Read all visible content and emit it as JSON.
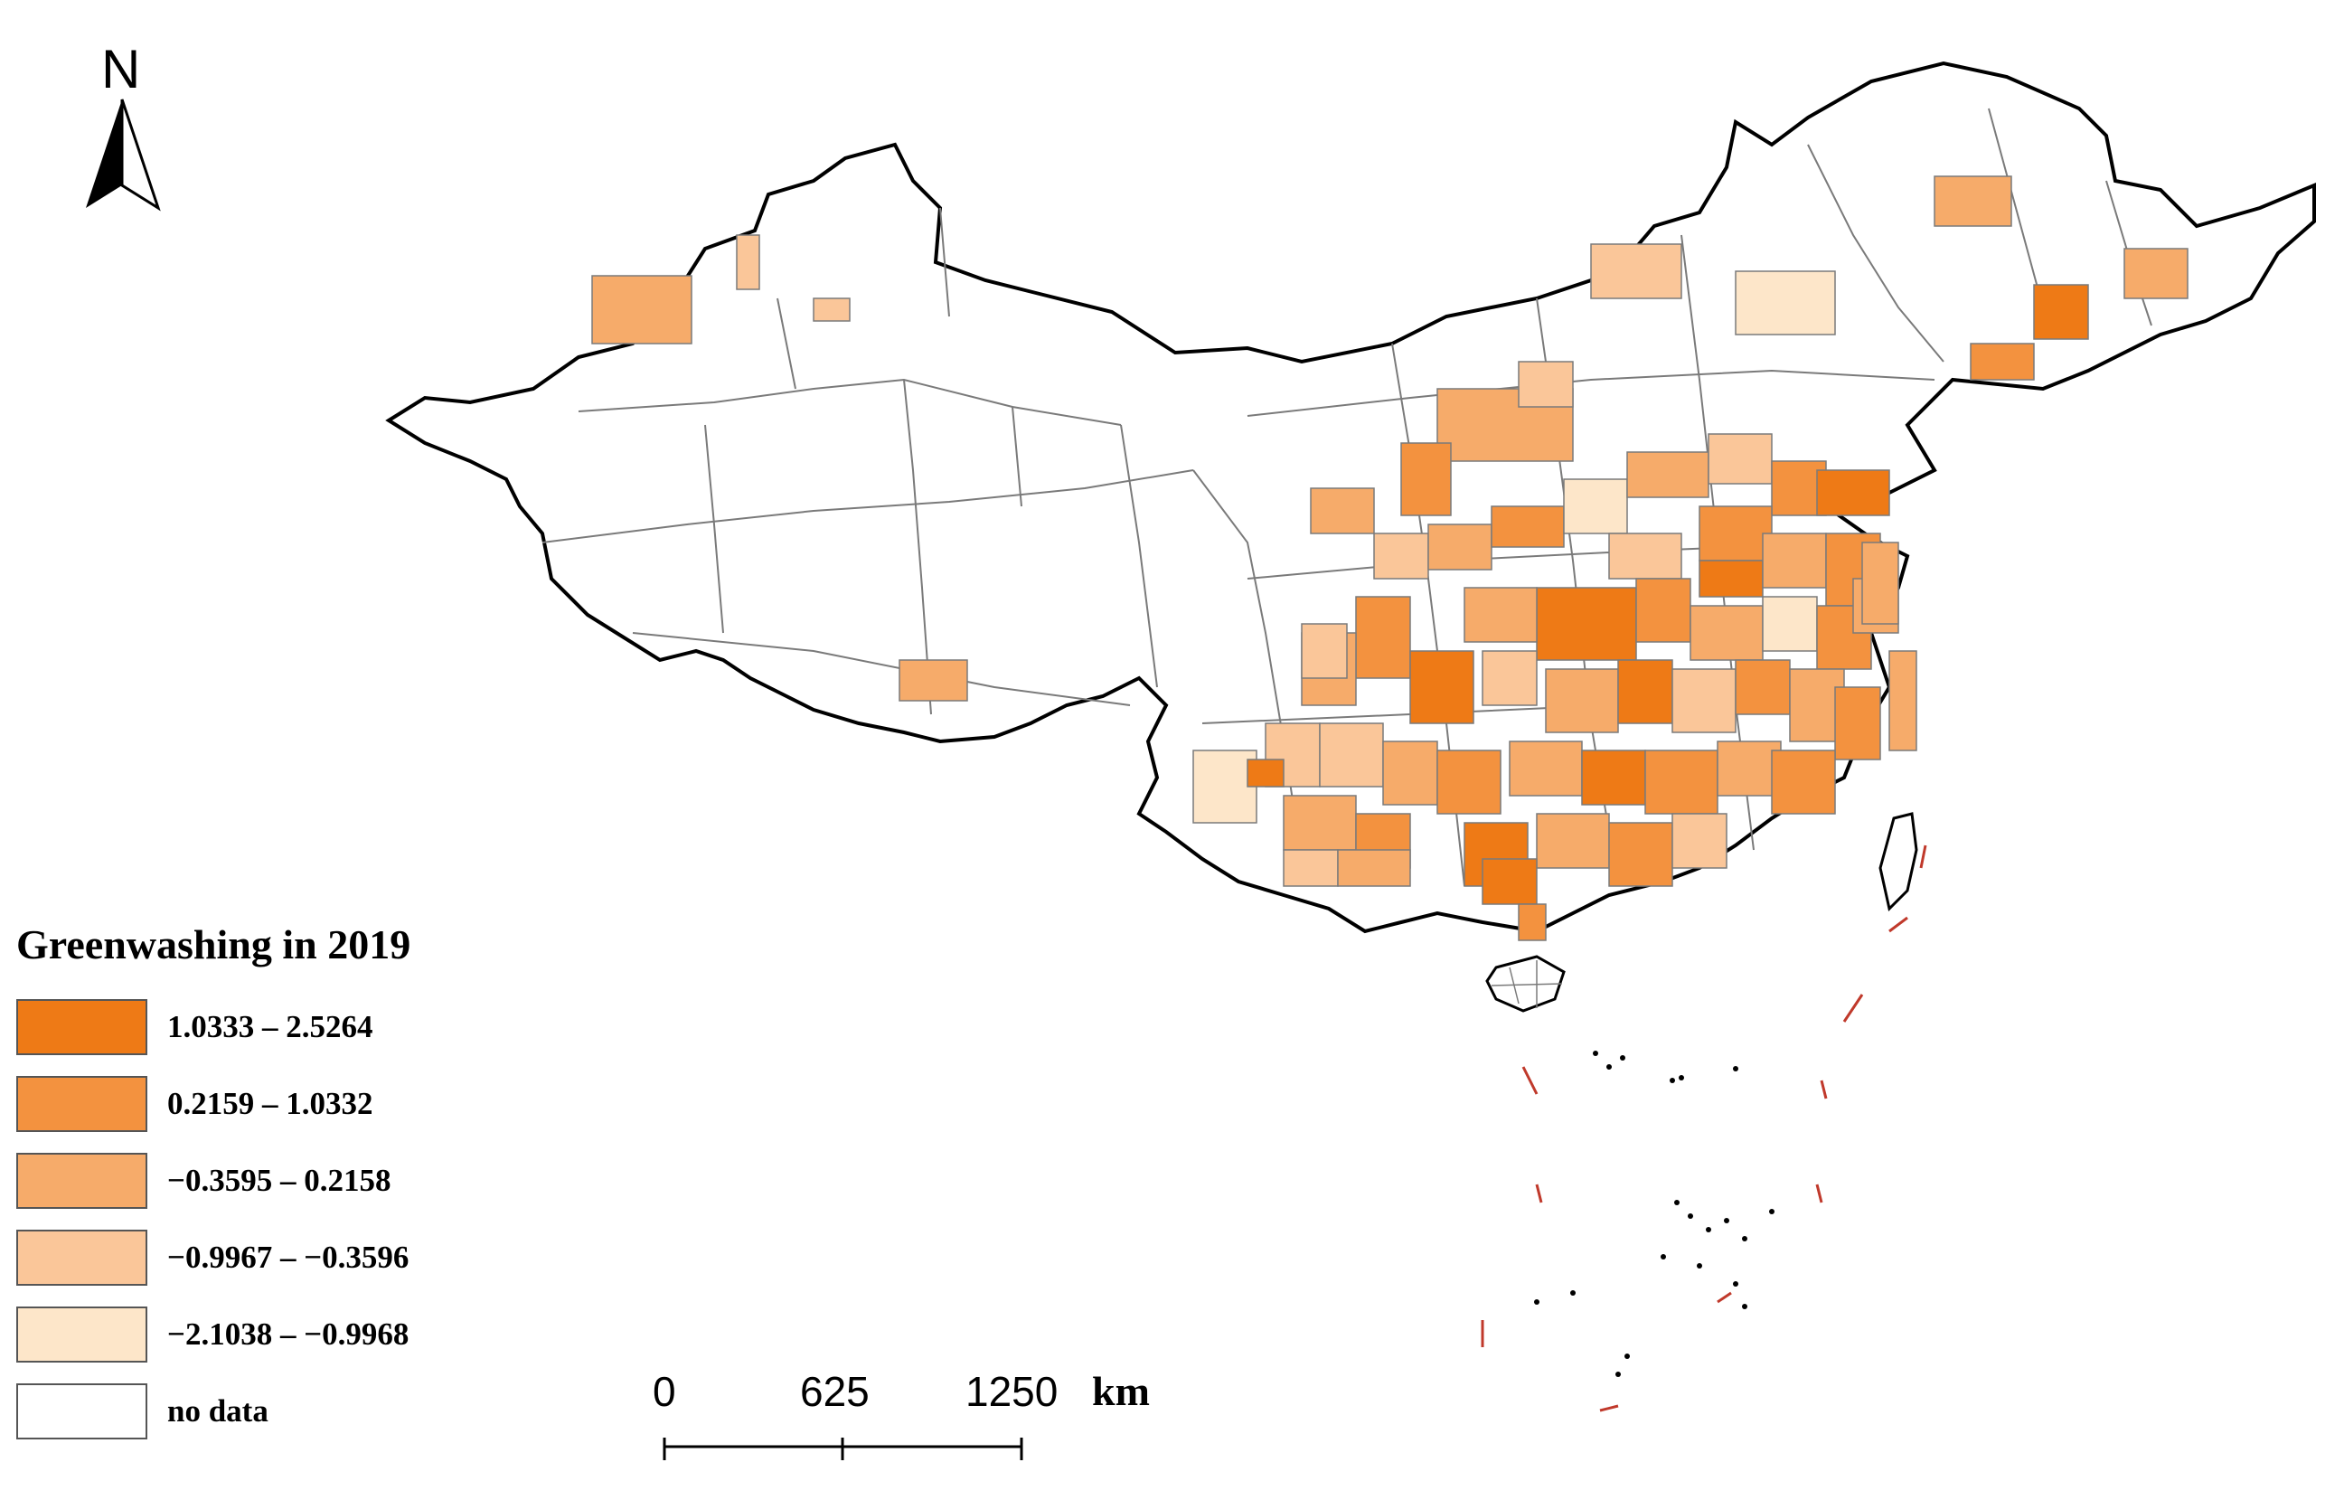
{
  "map": {
    "north_arrow": {
      "label": "N",
      "icon": "north-arrow-icon"
    },
    "legend": {
      "title": "Greenwashing in 2019",
      "classes": [
        {
          "label": "1.0333 – 2.5264",
          "color": "#ee7a16"
        },
        {
          "label": "0.2159 – 1.0332",
          "color": "#f3923f"
        },
        {
          "label": "−0.3595 – 0.2158",
          "color": "#f6ab6a"
        },
        {
          "label": "−0.9967 – −0.3596",
          "color": "#fac699"
        },
        {
          "label": "−2.1038 – −0.9968",
          "color": "#fde6c9"
        },
        {
          "label": "no data",
          "color": "#ffffff"
        }
      ]
    },
    "scale_bar": {
      "ticks": [
        "0",
        "625",
        "1250"
      ],
      "unit": "km"
    },
    "colors": {
      "boundary": "#6e6e6e",
      "outline": "#000000",
      "dash_line": "#c0392b"
    }
  }
}
